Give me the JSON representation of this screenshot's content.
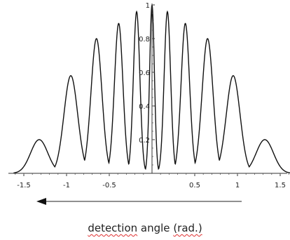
{
  "chart_data": {
    "type": "line",
    "title": "",
    "xlabel_parts": [
      "detection",
      " angle ",
      "(rad.)"
    ],
    "ylabel": "",
    "xlim": [
      -1.62,
      1.62
    ],
    "ylim": [
      0,
      1.0
    ],
    "x_ticks": [
      -1.5,
      -1,
      -0.5,
      0.5,
      1,
      1.5
    ],
    "x_tick_labels": [
      "-1.5",
      "-1",
      "-0.5",
      "0.5",
      "1",
      "1.5"
    ],
    "y_ticks": [
      0.2,
      0.4,
      0.6,
      0.8,
      1
    ],
    "y_tick_labels": [
      "0.2",
      "0.4",
      "0.6",
      "0.8",
      "1"
    ],
    "peak_x": [
      -1.32,
      -0.95,
      -0.65,
      -0.39,
      -0.18,
      0.0,
      0.18,
      0.39,
      0.65,
      0.95,
      1.32
    ],
    "peak_y": [
      0.2,
      0.58,
      0.8,
      0.89,
      0.96,
      1.0,
      0.96,
      0.89,
      0.8,
      0.58,
      0.2
    ],
    "grid": false,
    "annotation": "arrow pointing toward negative angle, below x-axis"
  }
}
